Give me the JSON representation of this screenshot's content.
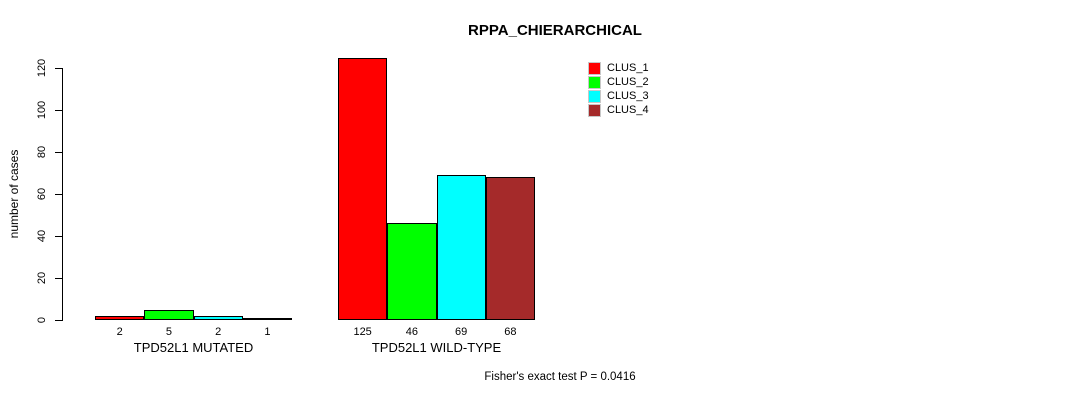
{
  "title": "RPPA_CHIERARCHICAL",
  "y_axis_label": "number of cases",
  "footer_note": "Fisher's exact test P = 0.0416",
  "legend": {
    "position": "top-right",
    "entries": [
      {
        "label": "CLUS_1",
        "color": "#FF0000"
      },
      {
        "label": "CLUS_2",
        "color": "#00FF00"
      },
      {
        "label": "CLUS_3",
        "color": "#00FFFF"
      },
      {
        "label": "CLUS_4",
        "color": "#A52A2A"
      }
    ]
  },
  "chart_data": {
    "type": "bar",
    "title": "RPPA_CHIERARCHICAL",
    "xlabel": "",
    "ylabel": "number of cases",
    "categories": [
      "TPD52L1 MUTATED",
      "TPD52L1 WILD-TYPE"
    ],
    "series": [
      {
        "name": "CLUS_1",
        "color": "#FF0000",
        "values": [
          2,
          125
        ]
      },
      {
        "name": "CLUS_2",
        "color": "#00FF00",
        "values": [
          5,
          46
        ]
      },
      {
        "name": "CLUS_3",
        "color": "#00FFFF",
        "values": [
          2,
          69
        ]
      },
      {
        "name": "CLUS_4",
        "color": "#A52A2A",
        "values": [
          1,
          68
        ]
      }
    ],
    "bar_value_labels": [
      [
        "2",
        "5",
        "2",
        "1"
      ],
      [
        "125",
        "46",
        "69",
        "68"
      ]
    ],
    "yticks": [
      0,
      20,
      40,
      60,
      80,
      100,
      120
    ],
    "ylim": [
      0,
      126
    ],
    "grid": false,
    "legend_position": "top-right",
    "annotation": "Fisher's exact test P = 0.0416"
  }
}
